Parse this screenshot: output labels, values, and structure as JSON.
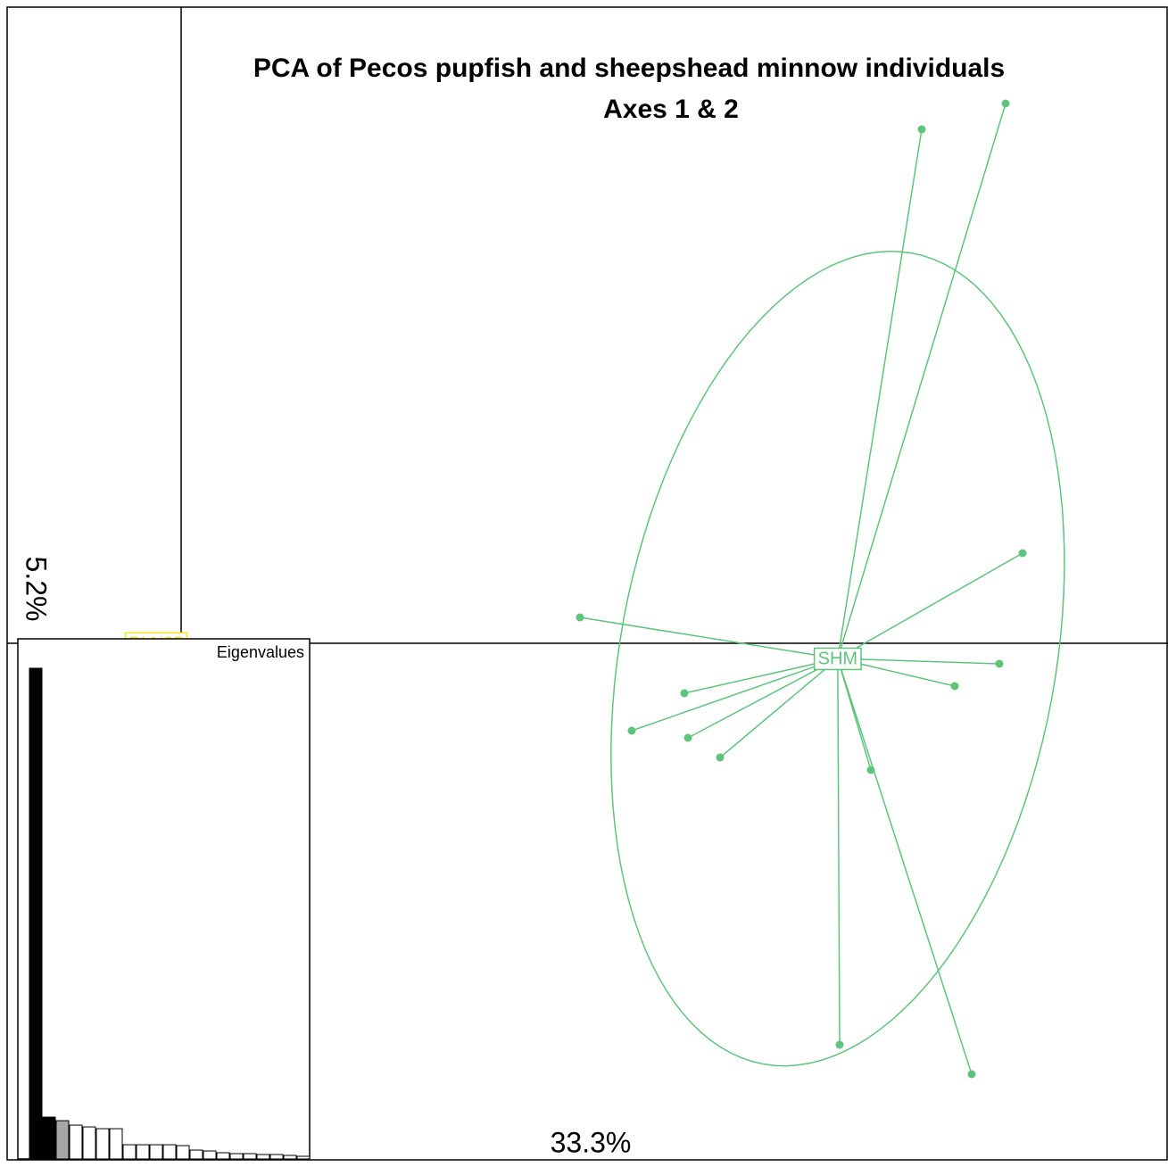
{
  "chart_data": {
    "type": "scatter",
    "title": "PCA of Pecos pupfish and sheepshead minnow individuals",
    "subtitle": "Axes 1 & 2",
    "xlabel": "33.3%",
    "ylabel": "5.2%",
    "xlim": [
      -1.95,
      11.06
    ],
    "ylim": [
      -5.79,
      7.13
    ],
    "ellipse": true,
    "groups": [
      {
        "name": "SHM",
        "color": "#5ec47c",
        "x": [
          8.3,
          9.24,
          9.43,
          4.47,
          9.17,
          8.67,
          5.64,
          5.05,
          5.68,
          6.04,
          7.73,
          7.38,
          8.86
        ],
        "y": [
          5.76,
          6.05,
          1.01,
          0.29,
          -0.23,
          -0.48,
          -0.56,
          -0.98,
          -1.06,
          -1.28,
          -1.42,
          -4.5,
          -4.83
        ]
      },
      {
        "name": "BLN05",
        "color": "#f5e61f",
        "x": [
          -0.28
        ],
        "y": [
          0
        ]
      }
    ],
    "eigenvalues": {
      "title": "Eigenvalues",
      "values": [
        551,
        47,
        43,
        38,
        36,
        34,
        34,
        16,
        16,
        16,
        16,
        15,
        10,
        9,
        7,
        6,
        6,
        5,
        5,
        4,
        3
      ],
      "ylim": [
        0,
        560
      ],
      "highlight_colors": [
        "#000000",
        "#000000",
        "#a6a6a6"
      ],
      "fill": "#ffffff"
    }
  }
}
